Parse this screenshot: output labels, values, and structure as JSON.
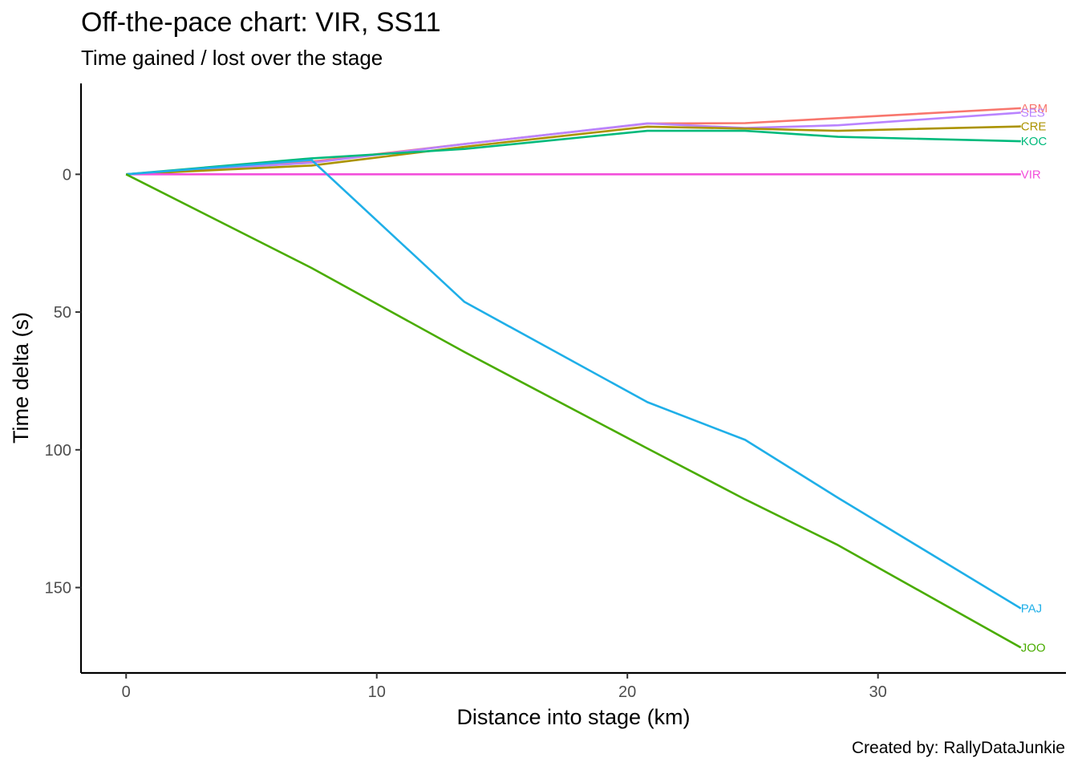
{
  "chart_data": {
    "type": "line",
    "title": "Off-the-pace chart: VIR, SS11",
    "subtitle": "Time gained / lost over the stage",
    "xlabel": "Distance into stage (km)",
    "ylabel": "Time delta (s)",
    "caption": "Created by: RallyDataJunkie",
    "xlim": [
      -1.8,
      37.5
    ],
    "ylim": [
      -33,
      181
    ],
    "y_reversed": true,
    "grid": false,
    "legend": "none (labels at line ends)",
    "x_ticks": [
      0,
      10,
      20,
      30
    ],
    "y_ticks": [
      0,
      50,
      100,
      150
    ],
    "series": [
      {
        "name": "ARM",
        "color": "#F8766D",
        "x": [
          0,
          7.4,
          13.5,
          20.8,
          24.7,
          28.4,
          35.7
        ],
        "y": [
          0,
          -4.6,
          -11,
          -18.4,
          -18.6,
          -20.4,
          -24
        ]
      },
      {
        "name": "SES",
        "color": "#B983FF",
        "x": [
          0,
          7.4,
          13.5,
          20.8,
          24.7,
          28.4,
          35.7
        ],
        "y": [
          0,
          -4.2,
          -11,
          -18.5,
          -16.8,
          -17.8,
          -22.4
        ]
      },
      {
        "name": "CRE",
        "color": "#AB9300",
        "x": [
          0,
          7.4,
          13.5,
          20.8,
          24.7,
          28.4,
          35.7
        ],
        "y": [
          0,
          -3.2,
          -10,
          -17.3,
          -16.6,
          -15.8,
          -17.4
        ]
      },
      {
        "name": "KOC",
        "color": "#00BA7C",
        "x": [
          0,
          7.4,
          13.5,
          20.8,
          24.7,
          28.4,
          35.7
        ],
        "y": [
          0,
          -5.8,
          -9.2,
          -15.8,
          -15.8,
          -13.6,
          -12
        ]
      },
      {
        "name": "VIR",
        "color": "#F34FDB",
        "x": [
          0,
          7.4,
          13.5,
          20.8,
          24.7,
          28.4,
          35.7
        ],
        "y": [
          0,
          0,
          0,
          0,
          0,
          0,
          0
        ]
      },
      {
        "name": "PAJ",
        "color": "#1FAFE8",
        "x": [
          0,
          7.4,
          13.5,
          20.8,
          24.7,
          28.4,
          35.7
        ],
        "y": [
          0,
          -5.2,
          46.3,
          82.7,
          96.4,
          117.4,
          157.6
        ]
      },
      {
        "name": "JOO",
        "color": "#49AC00",
        "x": [
          0,
          7.4,
          13.5,
          20.8,
          24.7,
          28.4,
          35.7
        ],
        "y": [
          0,
          34,
          64.5,
          99.5,
          118,
          134.6,
          171.8
        ]
      }
    ]
  }
}
